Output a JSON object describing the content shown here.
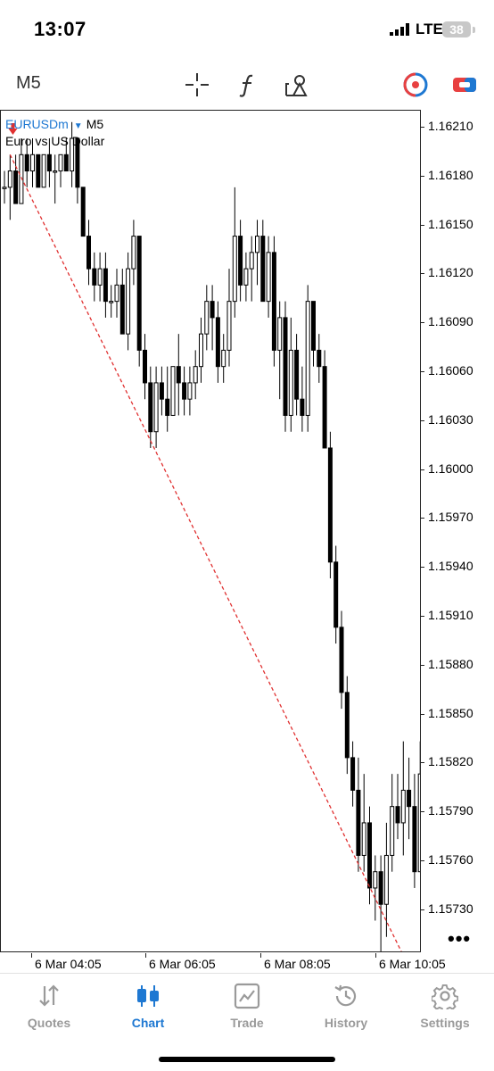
{
  "status": {
    "time": "13:07",
    "network": "LTE",
    "battery": "38"
  },
  "toolbar": {
    "timeframe": "M5",
    "tools": [
      "crosshair-icon",
      "function-icon",
      "objects-icon",
      "trade-toggle-icon",
      "one-click-icon"
    ]
  },
  "chart": {
    "symbol": "EURUSDm",
    "timeframe": "M5",
    "description": "Euro vs US Dollar",
    "price_labels": [
      "1.16210",
      "1.16180",
      "1.16150",
      "1.16120",
      "1.16090",
      "1.16060",
      "1.16030",
      "1.16000",
      "1.15970",
      "1.15940",
      "1.15910",
      "1.15880",
      "1.15850",
      "1.15820",
      "1.15790",
      "1.15760",
      "1.15730"
    ],
    "time_labels": [
      "6 Mar 04:05",
      "6 Mar 06:05",
      "6 Mar 08:05",
      "6 Mar 10:05"
    ],
    "more_label": "•••",
    "trendline_color": "#e03030",
    "bull_color": "#ffffff",
    "bear_color": "#000000"
  },
  "chart_data": {
    "type": "candlestick",
    "symbol": "EURUSDm",
    "ylim": [
      1.1571,
      1.16227
    ],
    "candles": [
      [
        1.1618,
        1.1619,
        1.1617,
        1.1618
      ],
      [
        1.1618,
        1.162,
        1.1616,
        1.1619
      ],
      [
        1.1619,
        1.162,
        1.1617,
        1.1617
      ],
      [
        1.1617,
        1.1621,
        1.1617,
        1.162
      ],
      [
        1.162,
        1.1621,
        1.1618,
        1.1619
      ],
      [
        1.1619,
        1.1621,
        1.1618,
        1.162
      ],
      [
        1.162,
        1.162,
        1.1618,
        1.1618
      ],
      [
        1.1618,
        1.162,
        1.1618,
        1.162
      ],
      [
        1.162,
        1.1621,
        1.1618,
        1.1619
      ],
      [
        1.1619,
        1.162,
        1.1617,
        1.1619
      ],
      [
        1.1619,
        1.162,
        1.1618,
        1.162
      ],
      [
        1.162,
        1.1621,
        1.1619,
        1.1619
      ],
      [
        1.1619,
        1.1622,
        1.1618,
        1.1621
      ],
      [
        1.1621,
        1.1621,
        1.1617,
        1.1618
      ],
      [
        1.1618,
        1.1618,
        1.1615,
        1.1615
      ],
      [
        1.1615,
        1.1616,
        1.1612,
        1.1613
      ],
      [
        1.1613,
        1.1614,
        1.1611,
        1.1612
      ],
      [
        1.1612,
        1.1614,
        1.1611,
        1.1613
      ],
      [
        1.1613,
        1.1614,
        1.161,
        1.1611
      ],
      [
        1.1611,
        1.1612,
        1.161,
        1.1611
      ],
      [
        1.1611,
        1.1613,
        1.161,
        1.1612
      ],
      [
        1.1612,
        1.1613,
        1.1609,
        1.1609
      ],
      [
        1.1609,
        1.1614,
        1.1608,
        1.1613
      ],
      [
        1.1613,
        1.1616,
        1.1612,
        1.1615
      ],
      [
        1.1615,
        1.1615,
        1.1607,
        1.1608
      ],
      [
        1.1608,
        1.1609,
        1.1605,
        1.1606
      ],
      [
        1.1606,
        1.1607,
        1.1602,
        1.1603
      ],
      [
        1.1603,
        1.1607,
        1.1602,
        1.1606
      ],
      [
        1.1606,
        1.1607,
        1.1604,
        1.1605
      ],
      [
        1.1605,
        1.1607,
        1.1603,
        1.1604
      ],
      [
        1.1604,
        1.1607,
        1.1604,
        1.1607
      ],
      [
        1.1607,
        1.1609,
        1.1604,
        1.1606
      ],
      [
        1.1606,
        1.1607,
        1.1604,
        1.1605
      ],
      [
        1.1605,
        1.1607,
        1.1604,
        1.1606
      ],
      [
        1.1606,
        1.1608,
        1.1605,
        1.1607
      ],
      [
        1.1607,
        1.161,
        1.1606,
        1.1609
      ],
      [
        1.1609,
        1.1612,
        1.1608,
        1.1611
      ],
      [
        1.1611,
        1.1612,
        1.1608,
        1.161
      ],
      [
        1.161,
        1.1611,
        1.1606,
        1.1607
      ],
      [
        1.1607,
        1.1609,
        1.1606,
        1.1608
      ],
      [
        1.1608,
        1.1613,
        1.1607,
        1.1611
      ],
      [
        1.1611,
        1.1618,
        1.161,
        1.1615
      ],
      [
        1.1615,
        1.1616,
        1.1611,
        1.1612
      ],
      [
        1.1612,
        1.1614,
        1.1611,
        1.1613
      ],
      [
        1.1613,
        1.1615,
        1.1611,
        1.1614
      ],
      [
        1.1614,
        1.1616,
        1.1612,
        1.1615
      ],
      [
        1.1615,
        1.1616,
        1.1611,
        1.1611
      ],
      [
        1.1611,
        1.1615,
        1.161,
        1.1614
      ],
      [
        1.1614,
        1.1615,
        1.1607,
        1.1608
      ],
      [
        1.1608,
        1.1611,
        1.1605,
        1.161
      ],
      [
        1.161,
        1.1611,
        1.1603,
        1.1604
      ],
      [
        1.1604,
        1.161,
        1.1603,
        1.1608
      ],
      [
        1.1608,
        1.1609,
        1.1604,
        1.1605
      ],
      [
        1.1605,
        1.1607,
        1.1603,
        1.1604
      ],
      [
        1.1604,
        1.1612,
        1.1603,
        1.1611
      ],
      [
        1.1611,
        1.1611,
        1.1607,
        1.1608
      ],
      [
        1.1608,
        1.1609,
        1.1606,
        1.1607
      ],
      [
        1.1607,
        1.1608,
        1.1602,
        1.1602
      ],
      [
        1.1602,
        1.1603,
        1.1594,
        1.1595
      ],
      [
        1.1595,
        1.1596,
        1.159,
        1.1591
      ],
      [
        1.1591,
        1.1592,
        1.1586,
        1.1587
      ],
      [
        1.1587,
        1.1588,
        1.1582,
        1.1583
      ],
      [
        1.1583,
        1.1584,
        1.158,
        1.1581
      ],
      [
        1.1581,
        1.1583,
        1.1576,
        1.1577
      ],
      [
        1.1577,
        1.1582,
        1.1576,
        1.1579
      ],
      [
        1.1579,
        1.158,
        1.1574,
        1.1575
      ],
      [
        1.1575,
        1.1577,
        1.1573,
        1.1576
      ],
      [
        1.1576,
        1.1577,
        1.1571,
        1.1574
      ],
      [
        1.1574,
        1.1579,
        1.1572,
        1.1577
      ],
      [
        1.1577,
        1.1582,
        1.1576,
        1.158
      ],
      [
        1.158,
        1.1582,
        1.1578,
        1.1579
      ],
      [
        1.1579,
        1.1584,
        1.1577,
        1.1581
      ],
      [
        1.1581,
        1.1583,
        1.1578,
        1.158
      ],
      [
        1.158,
        1.1582,
        1.1575,
        1.1576
      ],
      [
        1.1576,
        1.1584,
        1.1576,
        1.1582
      ],
      [
        1.1582,
        1.1583,
        1.158,
        1.1581
      ]
    ],
    "trendline": {
      "start": [
        1,
        1.162
      ],
      "end": [
        71.5,
        1.15705
      ]
    }
  },
  "tabs": [
    {
      "label": "Quotes",
      "icon": "arrows-updown-icon",
      "active": false
    },
    {
      "label": "Chart",
      "icon": "candles-icon",
      "active": true
    },
    {
      "label": "Trade",
      "icon": "trade-chart-icon",
      "active": false
    },
    {
      "label": "History",
      "icon": "history-clock-icon",
      "active": false
    },
    {
      "label": "Settings",
      "icon": "gear-icon",
      "active": false
    }
  ]
}
